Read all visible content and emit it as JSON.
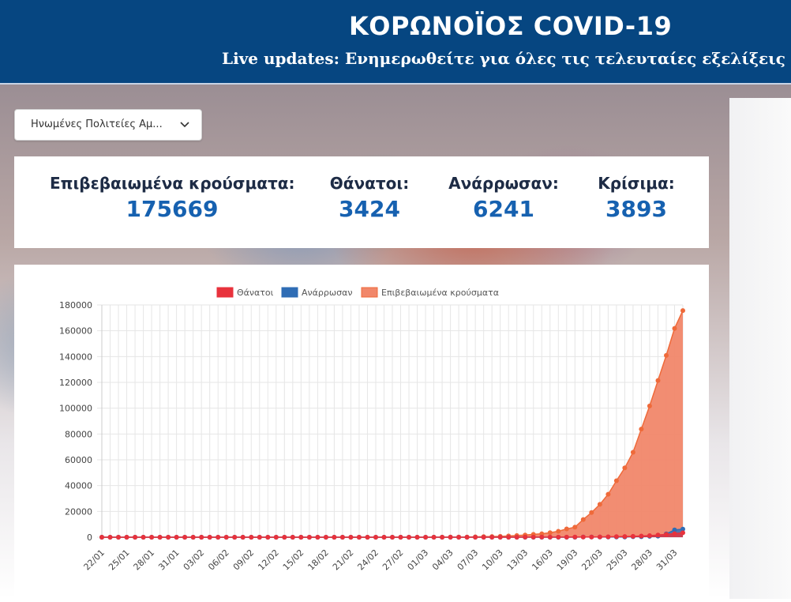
{
  "header": {
    "title": "ΚΟΡΩΝΟΪΟΣ COVID-19",
    "subtitle": "Live updates: Ενημερωθείτε για όλες τις τελευταίες εξελίξεις"
  },
  "country_select": {
    "value": "Ηνωμένες Πολιτείες Αμ..."
  },
  "stats": [
    {
      "label": "Επιβεβαιωμένα κρούσματα:",
      "value": "175669"
    },
    {
      "label": "Θάνατοι:",
      "value": "3424"
    },
    {
      "label": "Ανάρρωσαν:",
      "value": "6241"
    },
    {
      "label": "Κρίσιμα:",
      "value": "3893"
    }
  ],
  "colors": {
    "header_bg": "#064681",
    "deaths": "#e8323c",
    "recovered": "#2f6db5",
    "confirmed": "#ef6a3a",
    "confirmed_fill": "#f1876a",
    "value_text": "#1661b0"
  },
  "chart_data": {
    "type": "area",
    "legend_position": "top",
    "grid": true,
    "ylim": [
      0,
      180000
    ],
    "yticks": [
      "0",
      "20000",
      "40000",
      "60000",
      "80000",
      "100000",
      "120000",
      "140000",
      "160000",
      "180000"
    ],
    "x_tick_labels": [
      "22/01",
      "25/01",
      "28/01",
      "31/01",
      "03/02",
      "06/02",
      "09/02",
      "12/02",
      "15/02",
      "18/02",
      "21/02",
      "24/02",
      "27/02",
      "01/03",
      "04/03",
      "07/03",
      "10/03",
      "13/03",
      "16/03",
      "19/03",
      "22/03",
      "25/03",
      "28/03",
      "31/03"
    ],
    "x_start": "22/01",
    "series": [
      {
        "name": "Θάνατοι",
        "values": [
          0,
          0,
          0,
          0,
          0,
          0,
          0,
          0,
          0,
          0,
          0,
          0,
          0,
          0,
          0,
          0,
          0,
          0,
          0,
          0,
          0,
          0,
          0,
          0,
          0,
          0,
          0,
          0,
          0,
          0,
          0,
          0,
          0,
          0,
          0,
          0,
          0,
          0,
          0,
          0,
          1,
          1,
          6,
          7,
          11,
          12,
          14,
          17,
          21,
          22,
          28,
          36,
          40,
          47,
          54,
          63,
          85,
          108,
          118,
          200,
          244,
          307,
          427,
          535,
          697,
          944,
          1246,
          1711,
          2197,
          2729,
          3424
        ]
      },
      {
        "name": "Ανάρρωσαν",
        "values": [
          0,
          0,
          0,
          0,
          0,
          0,
          0,
          0,
          0,
          0,
          0,
          0,
          0,
          0,
          0,
          0,
          0,
          0,
          0,
          0,
          0,
          0,
          0,
          0,
          0,
          0,
          0,
          0,
          0,
          0,
          0,
          0,
          0,
          0,
          0,
          0,
          0,
          0,
          0,
          0,
          7,
          7,
          7,
          7,
          7,
          7,
          7,
          7,
          8,
          8,
          8,
          8,
          8,
          8,
          12,
          12,
          17,
          17,
          106,
          106,
          147,
          176,
          178,
          178,
          348,
          361,
          681,
          869,
          2612,
          5644,
          6241
        ]
      },
      {
        "name": "Επιβεβαιωμένα κρούσματα",
        "values": [
          0,
          0,
          0,
          0,
          0,
          0,
          0,
          0,
          0,
          0,
          0,
          0,
          0,
          0,
          0,
          0,
          0,
          0,
          0,
          0,
          0,
          0,
          0,
          0,
          0,
          0,
          0,
          0,
          0,
          0,
          0,
          0,
          0,
          0,
          0,
          0,
          0,
          0,
          0,
          0,
          60,
          80,
          100,
          130,
          210,
          330,
          430,
          560,
          700,
          1000,
          1300,
          1700,
          2200,
          2700,
          3500,
          4600,
          6400,
          7800,
          13700,
          19100,
          25500,
          33300,
          43800,
          53700,
          65800,
          83800,
          101700,
          121500,
          140900,
          161800,
          175669
        ]
      }
    ]
  }
}
